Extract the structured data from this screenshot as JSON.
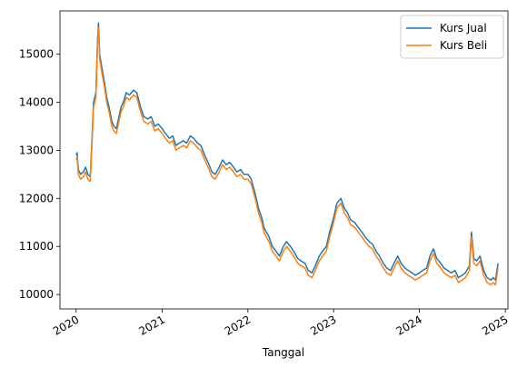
{
  "chart_data": {
    "type": "line",
    "title": "",
    "xlabel": "Tanggal",
    "ylabel": "",
    "xlim": [
      "2019-10-24",
      "2025-01-12"
    ],
    "ylim": [
      9700,
      15900
    ],
    "grid": false,
    "legend_position": "top-right",
    "x_ticks": [
      "2020",
      "2021",
      "2022",
      "2023",
      "2024",
      "2025"
    ],
    "x_tick_dates": [
      "2020-01-01",
      "2021-01-01",
      "2022-01-01",
      "2023-01-01",
      "2024-01-01",
      "2025-01-01"
    ],
    "y_ticks": [
      10000,
      11000,
      12000,
      13000,
      14000,
      15000
    ],
    "colors": {
      "Kurs Jual": "#1f77b4",
      "Kurs Beli": "#ff7f0e"
    },
    "x": [
      "2020-01-01",
      "2020-01-05",
      "2020-01-10",
      "2020-01-20",
      "2020-02-01",
      "2020-02-10",
      "2020-02-20",
      "2020-03-01",
      "2020-03-08",
      "2020-03-15",
      "2020-03-20",
      "2020-03-25",
      "2020-04-01",
      "2020-04-05",
      "2020-04-10",
      "2020-04-20",
      "2020-05-01",
      "2020-05-10",
      "2020-05-20",
      "2020-06-01",
      "2020-06-10",
      "2020-06-20",
      "2020-07-01",
      "2020-07-10",
      "2020-07-20",
      "2020-08-01",
      "2020-08-15",
      "2020-09-01",
      "2020-09-15",
      "2020-10-01",
      "2020-10-15",
      "2020-11-01",
      "2020-11-15",
      "2020-12-01",
      "2020-12-15",
      "2021-01-01",
      "2021-01-15",
      "2021-02-01",
      "2021-02-15",
      "2021-03-01",
      "2021-03-15",
      "2021-04-01",
      "2021-04-15",
      "2021-05-01",
      "2021-05-15",
      "2021-06-01",
      "2021-06-15",
      "2021-07-01",
      "2021-07-15",
      "2021-08-01",
      "2021-08-15",
      "2021-09-01",
      "2021-09-15",
      "2021-10-01",
      "2021-10-15",
      "2021-11-01",
      "2021-11-15",
      "2021-12-01",
      "2021-12-15",
      "2022-01-01",
      "2022-01-15",
      "2022-02-01",
      "2022-02-15",
      "2022-03-01",
      "2022-03-10",
      "2022-03-20",
      "2022-04-01",
      "2022-04-15",
      "2022-05-01",
      "2022-05-15",
      "2022-06-01",
      "2022-06-15",
      "2022-07-01",
      "2022-07-15",
      "2022-08-01",
      "2022-08-15",
      "2022-09-01",
      "2022-09-15",
      "2022-10-01",
      "2022-10-15",
      "2022-11-01",
      "2022-11-15",
      "2022-12-01",
      "2022-12-15",
      "2023-01-01",
      "2023-01-15",
      "2023-02-01",
      "2023-02-15",
      "2023-03-01",
      "2023-03-15",
      "2023-04-01",
      "2023-04-15",
      "2023-05-01",
      "2023-05-15",
      "2023-06-01",
      "2023-06-15",
      "2023-07-01",
      "2023-07-15",
      "2023-08-01",
      "2023-08-15",
      "2023-09-01",
      "2023-09-15",
      "2023-10-01",
      "2023-10-15",
      "2023-11-01",
      "2023-11-15",
      "2023-12-01",
      "2023-12-15",
      "2024-01-01",
      "2024-01-15",
      "2024-02-01",
      "2024-02-15",
      "2024-03-01",
      "2024-03-15",
      "2024-04-01",
      "2024-04-15",
      "2024-05-01",
      "2024-05-15",
      "2024-06-01",
      "2024-06-15",
      "2024-07-01",
      "2024-07-15",
      "2024-08-01",
      "2024-08-10",
      "2024-08-20",
      "2024-09-01",
      "2024-09-15",
      "2024-10-01",
      "2024-10-15",
      "2024-11-01",
      "2024-11-10",
      "2024-11-20",
      "2024-12-01"
    ],
    "series": [
      {
        "name": "Kurs Jual",
        "values": [
          12900,
          12950,
          12600,
          12500,
          12550,
          12650,
          12500,
          12450,
          13200,
          14000,
          14100,
          14200,
          15300,
          15650,
          15000,
          14700,
          14400,
          14100,
          13900,
          13600,
          13500,
          13450,
          13700,
          13900,
          14000,
          14200,
          14150,
          14250,
          14200,
          13900,
          13700,
          13650,
          13700,
          13500,
          13550,
          13450,
          13350,
          13250,
          13300,
          13100,
          13150,
          13200,
          13150,
          13300,
          13250,
          13150,
          13100,
          12900,
          12750,
          12550,
          12500,
          12650,
          12800,
          12700,
          12750,
          12650,
          12550,
          12600,
          12500,
          12500,
          12400,
          12100,
          11800,
          11600,
          11400,
          11300,
          11200,
          11000,
          10900,
          10800,
          11000,
          11100,
          11000,
          10900,
          10750,
          10700,
          10650,
          10500,
          10450,
          10600,
          10800,
          10900,
          11000,
          11300,
          11600,
          11900,
          12000,
          11800,
          11700,
          11550,
          11500,
          11400,
          11300,
          11200,
          11100,
          11050,
          10900,
          10800,
          10650,
          10550,
          10500,
          10650,
          10800,
          10650,
          10550,
          10500,
          10450,
          10400,
          10450,
          10500,
          10550,
          10800,
          10950,
          10750,
          10650,
          10550,
          10500,
          10450,
          10500,
          10350,
          10400,
          10450,
          10600,
          11300,
          10750,
          10700,
          10800,
          10500,
          10350,
          10300,
          10350,
          10300,
          10650
        ]
      },
      {
        "name": "Kurs Beli",
        "values": [
          12800,
          12850,
          12500,
          12400,
          12450,
          12550,
          12400,
          12350,
          13100,
          13900,
          14000,
          14100,
          15200,
          15550,
          14900,
          14600,
          14300,
          14000,
          13800,
          13500,
          13400,
          13350,
          13600,
          13800,
          13900,
          14100,
          14050,
          14150,
          14100,
          13800,
          13600,
          13550,
          13600,
          13400,
          13450,
          13350,
          13250,
          13150,
          13200,
          13000,
          13050,
          13100,
          13050,
          13200,
          13150,
          13050,
          13000,
          12800,
          12650,
          12450,
          12400,
          12550,
          12700,
          12600,
          12650,
          12550,
          12450,
          12500,
          12400,
          12400,
          12300,
          12000,
          11700,
          11500,
          11300,
          11200,
          11100,
          10900,
          10800,
          10700,
          10900,
          11000,
          10900,
          10800,
          10650,
          10600,
          10550,
          10400,
          10350,
          10500,
          10700,
          10800,
          10900,
          11200,
          11500,
          11800,
          11900,
          11700,
          11600,
          11450,
          11400,
          11300,
          11200,
          11100,
          11000,
          10950,
          10800,
          10700,
          10550,
          10450,
          10400,
          10550,
          10700,
          10550,
          10450,
          10400,
          10350,
          10300,
          10350,
          10400,
          10450,
          10700,
          10850,
          10650,
          10550,
          10450,
          10400,
          10350,
          10400,
          10250,
          10300,
          10350,
          10500,
          11200,
          10650,
          10600,
          10700,
          10400,
          10250,
          10200,
          10250,
          10200,
          10550
        ]
      }
    ]
  }
}
